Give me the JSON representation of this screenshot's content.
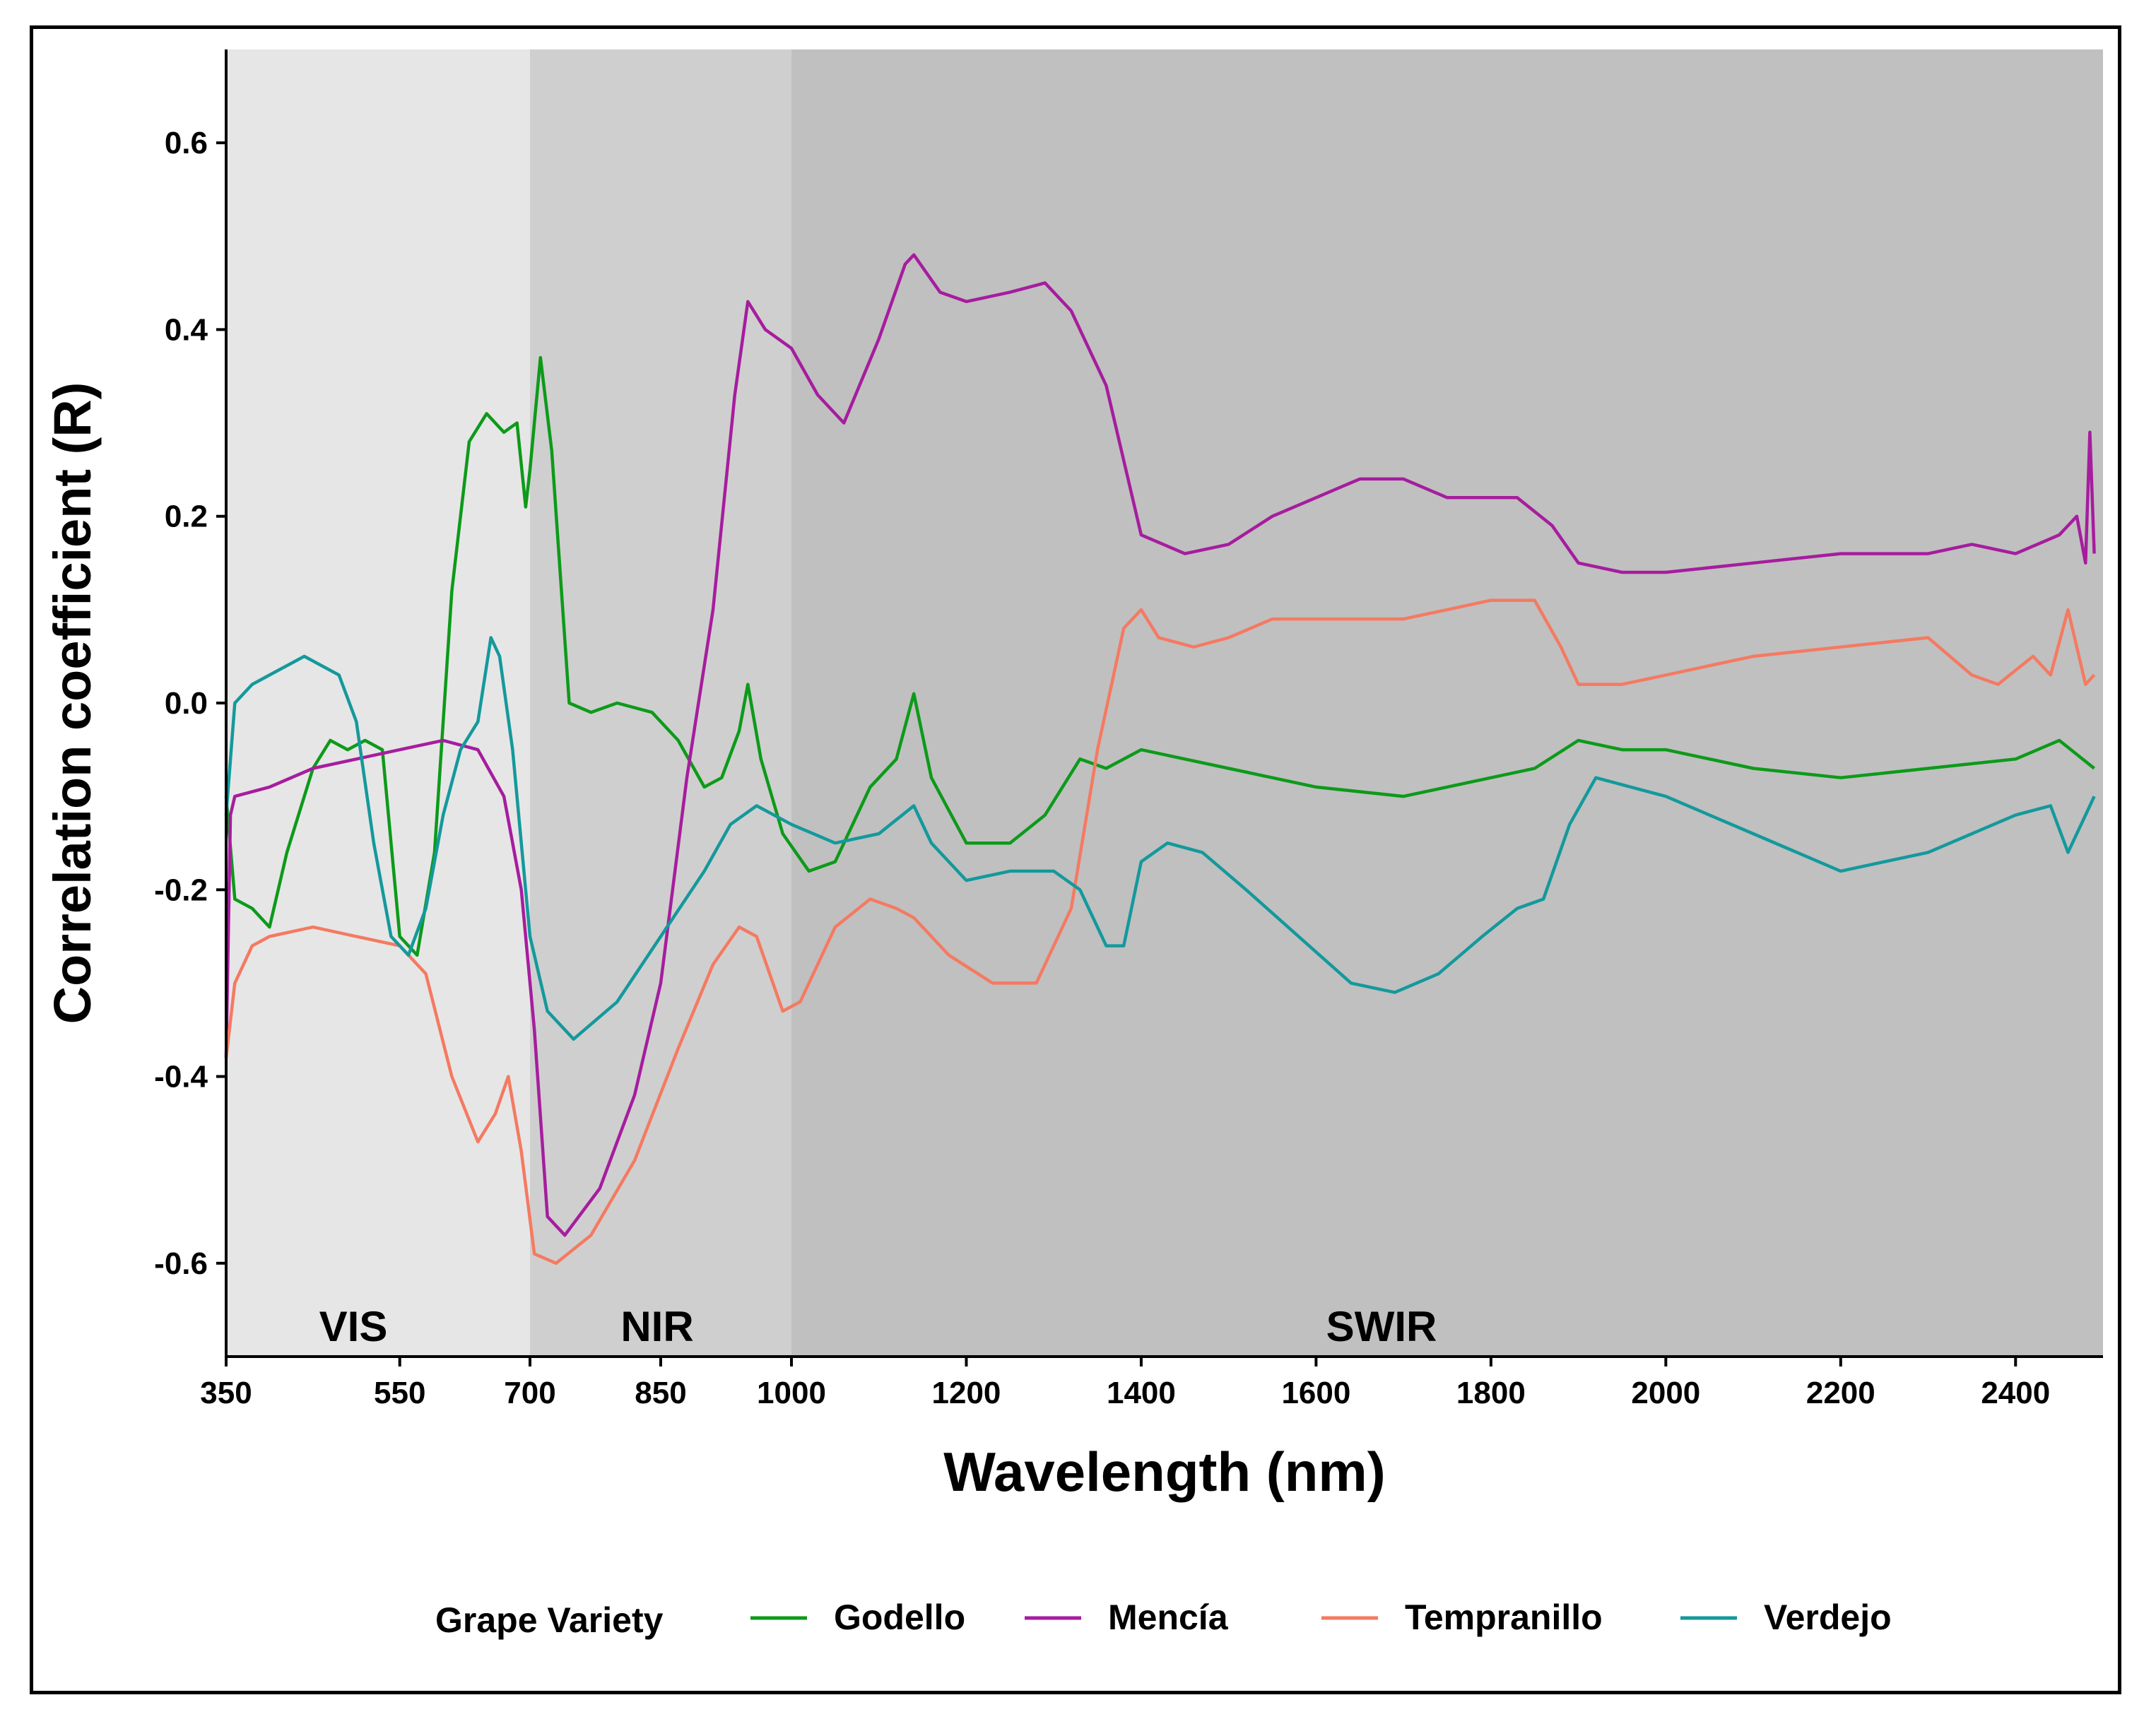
{
  "chart_data": {
    "type": "line",
    "xlabel": "Wavelength (nm)",
    "ylabel": "Correlation coefficient (R)",
    "x_ticks": [
      350,
      550,
      700,
      850,
      1000,
      1200,
      1400,
      1600,
      1800,
      2000,
      2200,
      2400
    ],
    "x_breaks": [
      350,
      700,
      1000,
      2500
    ],
    "y_ticks": [
      0.6,
      0.4,
      0.2,
      0.0,
      -0.2,
      -0.4,
      -0.6
    ],
    "ylim": [
      -0.7,
      0.7
    ],
    "regions": [
      {
        "label": "VIS",
        "x_start": 350,
        "x_end": 700,
        "color": "#e6e6e6"
      },
      {
        "label": "NIR",
        "x_start": 700,
        "x_end": 1000,
        "color": "#cfcfcf"
      },
      {
        "label": "SWIR",
        "x_start": 1000,
        "x_end": 2500,
        "color": "#c0c0c0"
      }
    ],
    "legend": {
      "title": "Grape Variety",
      "position": "bottom"
    },
    "series": [
      {
        "name": "Godello",
        "color": "#0d9a1a",
        "points": [
          [
            350,
            -0.1
          ],
          [
            360,
            -0.21
          ],
          [
            380,
            -0.22
          ],
          [
            400,
            -0.24
          ],
          [
            420,
            -0.16
          ],
          [
            450,
            -0.07
          ],
          [
            470,
            -0.04
          ],
          [
            490,
            -0.05
          ],
          [
            510,
            -0.04
          ],
          [
            530,
            -0.05
          ],
          [
            550,
            -0.25
          ],
          [
            570,
            -0.27
          ],
          [
            590,
            -0.16
          ],
          [
            610,
            0.12
          ],
          [
            630,
            0.28
          ],
          [
            650,
            0.31
          ],
          [
            670,
            0.29
          ],
          [
            685,
            0.3
          ],
          [
            695,
            0.21
          ],
          [
            700,
            0.25
          ],
          [
            712,
            0.37
          ],
          [
            725,
            0.27
          ],
          [
            745,
            0.0
          ],
          [
            770,
            -0.01
          ],
          [
            800,
            0.0
          ],
          [
            840,
            -0.01
          ],
          [
            870,
            -0.04
          ],
          [
            900,
            -0.09
          ],
          [
            920,
            -0.08
          ],
          [
            940,
            -0.03
          ],
          [
            950,
            0.02
          ],
          [
            965,
            -0.06
          ],
          [
            990,
            -0.14
          ],
          [
            1020,
            -0.18
          ],
          [
            1050,
            -0.17
          ],
          [
            1090,
            -0.09
          ],
          [
            1120,
            -0.06
          ],
          [
            1140,
            0.01
          ],
          [
            1160,
            -0.08
          ],
          [
            1200,
            -0.15
          ],
          [
            1250,
            -0.15
          ],
          [
            1290,
            -0.12
          ],
          [
            1330,
            -0.06
          ],
          [
            1360,
            -0.07
          ],
          [
            1400,
            -0.05
          ],
          [
            1450,
            -0.06
          ],
          [
            1500,
            -0.07
          ],
          [
            1550,
            -0.08
          ],
          [
            1600,
            -0.09
          ],
          [
            1700,
            -0.1
          ],
          [
            1800,
            -0.08
          ],
          [
            1850,
            -0.07
          ],
          [
            1900,
            -0.04
          ],
          [
            1950,
            -0.05
          ],
          [
            2000,
            -0.05
          ],
          [
            2100,
            -0.07
          ],
          [
            2200,
            -0.08
          ],
          [
            2300,
            -0.07
          ],
          [
            2400,
            -0.06
          ],
          [
            2450,
            -0.04
          ],
          [
            2490,
            -0.07
          ]
        ]
      },
      {
        "name": "Mencía",
        "color": "#a61d9e",
        "points": [
          [
            350,
            -0.38
          ],
          [
            355,
            -0.12
          ],
          [
            360,
            -0.1
          ],
          [
            400,
            -0.09
          ],
          [
            450,
            -0.07
          ],
          [
            500,
            -0.06
          ],
          [
            550,
            -0.05
          ],
          [
            600,
            -0.04
          ],
          [
            640,
            -0.05
          ],
          [
            670,
            -0.1
          ],
          [
            690,
            -0.2
          ],
          [
            705,
            -0.35
          ],
          [
            720,
            -0.55
          ],
          [
            740,
            -0.57
          ],
          [
            780,
            -0.52
          ],
          [
            820,
            -0.42
          ],
          [
            850,
            -0.3
          ],
          [
            880,
            -0.08
          ],
          [
            910,
            0.1
          ],
          [
            935,
            0.33
          ],
          [
            950,
            0.43
          ],
          [
            970,
            0.4
          ],
          [
            1000,
            0.38
          ],
          [
            1030,
            0.33
          ],
          [
            1060,
            0.3
          ],
          [
            1100,
            0.39
          ],
          [
            1130,
            0.47
          ],
          [
            1140,
            0.48
          ],
          [
            1170,
            0.44
          ],
          [
            1200,
            0.43
          ],
          [
            1250,
            0.44
          ],
          [
            1290,
            0.45
          ],
          [
            1320,
            0.42
          ],
          [
            1360,
            0.34
          ],
          [
            1400,
            0.18
          ],
          [
            1450,
            0.16
          ],
          [
            1500,
            0.17
          ],
          [
            1550,
            0.2
          ],
          [
            1600,
            0.22
          ],
          [
            1650,
            0.24
          ],
          [
            1700,
            0.24
          ],
          [
            1750,
            0.22
          ],
          [
            1790,
            0.22
          ],
          [
            1830,
            0.22
          ],
          [
            1870,
            0.19
          ],
          [
            1900,
            0.15
          ],
          [
            1950,
            0.14
          ],
          [
            2000,
            0.14
          ],
          [
            2100,
            0.15
          ],
          [
            2200,
            0.16
          ],
          [
            2300,
            0.16
          ],
          [
            2350,
            0.17
          ],
          [
            2400,
            0.16
          ],
          [
            2450,
            0.18
          ],
          [
            2470,
            0.2
          ],
          [
            2480,
            0.15
          ],
          [
            2485,
            0.29
          ],
          [
            2490,
            0.16
          ]
        ]
      },
      {
        "name": "Tempranillo",
        "color": "#f47a62",
        "points": [
          [
            350,
            -0.38
          ],
          [
            360,
            -0.3
          ],
          [
            380,
            -0.26
          ],
          [
            400,
            -0.25
          ],
          [
            450,
            -0.24
          ],
          [
            500,
            -0.25
          ],
          [
            550,
            -0.26
          ],
          [
            580,
            -0.29
          ],
          [
            610,
            -0.4
          ],
          [
            640,
            -0.47
          ],
          [
            660,
            -0.44
          ],
          [
            675,
            -0.4
          ],
          [
            690,
            -0.48
          ],
          [
            705,
            -0.59
          ],
          [
            730,
            -0.6
          ],
          [
            770,
            -0.57
          ],
          [
            820,
            -0.49
          ],
          [
            870,
            -0.37
          ],
          [
            910,
            -0.28
          ],
          [
            940,
            -0.24
          ],
          [
            960,
            -0.25
          ],
          [
            990,
            -0.33
          ],
          [
            1010,
            -0.32
          ],
          [
            1050,
            -0.24
          ],
          [
            1090,
            -0.21
          ],
          [
            1120,
            -0.22
          ],
          [
            1140,
            -0.23
          ],
          [
            1180,
            -0.27
          ],
          [
            1230,
            -0.3
          ],
          [
            1280,
            -0.3
          ],
          [
            1320,
            -0.22
          ],
          [
            1350,
            -0.05
          ],
          [
            1380,
            0.08
          ],
          [
            1400,
            0.1
          ],
          [
            1420,
            0.07
          ],
          [
            1460,
            0.06
          ],
          [
            1500,
            0.07
          ],
          [
            1550,
            0.09
          ],
          [
            1600,
            0.09
          ],
          [
            1700,
            0.09
          ],
          [
            1750,
            0.1
          ],
          [
            1800,
            0.11
          ],
          [
            1850,
            0.11
          ],
          [
            1880,
            0.06
          ],
          [
            1900,
            0.02
          ],
          [
            1950,
            0.02
          ],
          [
            2000,
            0.03
          ],
          [
            2100,
            0.05
          ],
          [
            2200,
            0.06
          ],
          [
            2300,
            0.07
          ],
          [
            2350,
            0.03
          ],
          [
            2380,
            0.02
          ],
          [
            2420,
            0.05
          ],
          [
            2440,
            0.03
          ],
          [
            2460,
            0.1
          ],
          [
            2480,
            0.02
          ],
          [
            2490,
            0.03
          ]
        ]
      },
      {
        "name": "Verdejo",
        "color": "#14999c",
        "points": [
          [
            350,
            -0.12
          ],
          [
            360,
            0.0
          ],
          [
            380,
            0.02
          ],
          [
            400,
            0.03
          ],
          [
            420,
            0.04
          ],
          [
            440,
            0.05
          ],
          [
            460,
            0.04
          ],
          [
            480,
            0.03
          ],
          [
            500,
            -0.02
          ],
          [
            520,
            -0.15
          ],
          [
            540,
            -0.25
          ],
          [
            560,
            -0.27
          ],
          [
            580,
            -0.22
          ],
          [
            600,
            -0.12
          ],
          [
            620,
            -0.05
          ],
          [
            640,
            -0.02
          ],
          [
            655,
            0.07
          ],
          [
            665,
            0.05
          ],
          [
            680,
            -0.05
          ],
          [
            700,
            -0.25
          ],
          [
            720,
            -0.33
          ],
          [
            750,
            -0.36
          ],
          [
            800,
            -0.32
          ],
          [
            850,
            -0.25
          ],
          [
            900,
            -0.18
          ],
          [
            930,
            -0.13
          ],
          [
            960,
            -0.11
          ],
          [
            1000,
            -0.13
          ],
          [
            1050,
            -0.15
          ],
          [
            1100,
            -0.14
          ],
          [
            1140,
            -0.11
          ],
          [
            1160,
            -0.15
          ],
          [
            1200,
            -0.19
          ],
          [
            1250,
            -0.18
          ],
          [
            1300,
            -0.18
          ],
          [
            1330,
            -0.2
          ],
          [
            1360,
            -0.26
          ],
          [
            1380,
            -0.26
          ],
          [
            1400,
            -0.17
          ],
          [
            1430,
            -0.15
          ],
          [
            1470,
            -0.16
          ],
          [
            1520,
            -0.2
          ],
          [
            1580,
            -0.25
          ],
          [
            1640,
            -0.3
          ],
          [
            1690,
            -0.31
          ],
          [
            1740,
            -0.29
          ],
          [
            1790,
            -0.25
          ],
          [
            1830,
            -0.22
          ],
          [
            1860,
            -0.21
          ],
          [
            1890,
            -0.13
          ],
          [
            1920,
            -0.08
          ],
          [
            1960,
            -0.09
          ],
          [
            2000,
            -0.1
          ],
          [
            2100,
            -0.14
          ],
          [
            2200,
            -0.18
          ],
          [
            2300,
            -0.16
          ],
          [
            2350,
            -0.14
          ],
          [
            2400,
            -0.12
          ],
          [
            2440,
            -0.11
          ],
          [
            2460,
            -0.16
          ],
          [
            2480,
            -0.12
          ],
          [
            2490,
            -0.1
          ]
        ]
      }
    ]
  }
}
